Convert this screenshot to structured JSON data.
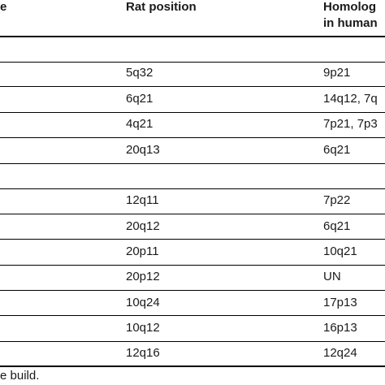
{
  "table": {
    "headers": {
      "gene_fragment": "e",
      "rat_position": "Rat position",
      "homolog_line1": "Homolog",
      "homolog_line2": "in human"
    },
    "rows": [
      {
        "rat": "5q32",
        "human": "9p21"
      },
      {
        "rat": "6q21",
        "human": "14q12, 7q"
      },
      {
        "rat": "4q21",
        "human": "7p21, 7p3"
      },
      {
        "rat": "20q13",
        "human": "6q21"
      },
      {
        "rat": "12q11",
        "human": "7p22"
      },
      {
        "rat": "20q12",
        "human": "6q21"
      },
      {
        "rat": "20p11",
        "human": "10q21"
      },
      {
        "rat": "20p12",
        "human": "UN"
      },
      {
        "rat": "10q24",
        "human": "17p13"
      },
      {
        "rat": "10q12",
        "human": "16p13"
      },
      {
        "rat": "12q16",
        "human": "12q24"
      }
    ]
  },
  "footnote": "e build."
}
